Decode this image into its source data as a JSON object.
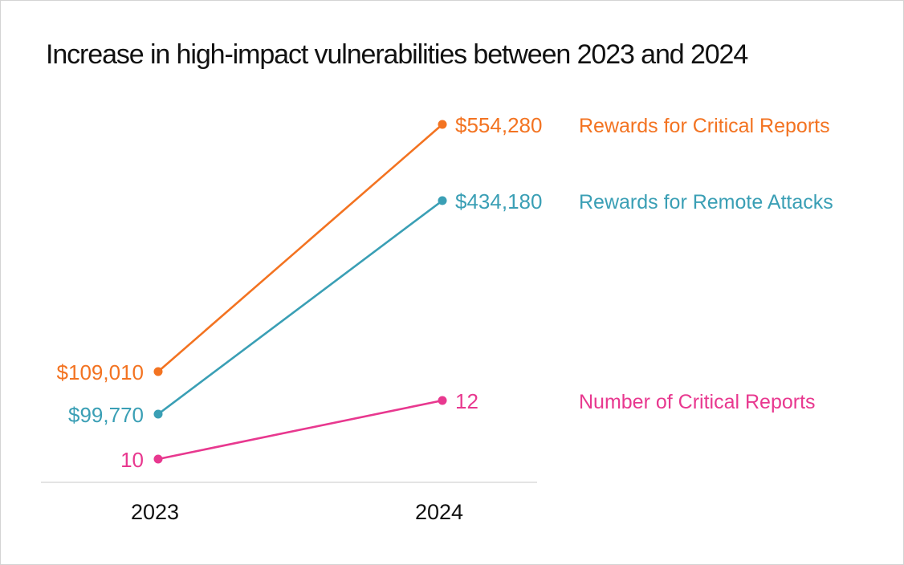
{
  "chart_data": {
    "type": "line",
    "title": "Increase in high-impact vulnerabilities between 2023 and 2024",
    "x": [
      "2023",
      "2024"
    ],
    "series": [
      {
        "name": "Rewards for Critical Reports",
        "values": [
          109010,
          554280
        ],
        "labels": [
          "$109,010",
          "$554,280"
        ],
        "color": "#f37321"
      },
      {
        "name": "Rewards for Remote Attacks",
        "values": [
          99770,
          434180
        ],
        "labels": [
          "$99,770",
          "$434,180"
        ],
        "color": "#3a9fb5"
      },
      {
        "name": "Number of Critical Reports",
        "values": [
          10,
          12
        ],
        "labels": [
          "10",
          "12"
        ],
        "color": "#e8388f"
      }
    ],
    "grid": false,
    "legend": "right, inline labels"
  }
}
